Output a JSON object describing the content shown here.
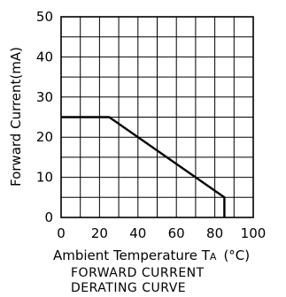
{
  "chart_data": {
    "type": "line",
    "xlabel_main": "Ambient Temperature T",
    "xlabel_sub": "A",
    "xlabel_unit": "(°C)",
    "ylabel": "Forward Current(mA)",
    "caption_line1": "FORWARD CURRENT",
    "caption_line2": "DERATING CURVE",
    "xlim": [
      0,
      100
    ],
    "ylim": [
      0,
      50
    ],
    "x_ticks": [
      0,
      20,
      40,
      60,
      80,
      100
    ],
    "y_ticks": [
      0,
      10,
      20,
      30,
      40,
      50
    ],
    "grid": true,
    "series": [
      {
        "points": [
          {
            "x": 0,
            "y": 25
          },
          {
            "x": 25,
            "y": 25
          },
          {
            "x": 85,
            "y": 5
          },
          {
            "x": 85,
            "y": 0
          }
        ]
      }
    ],
    "line_color": "#000000"
  }
}
